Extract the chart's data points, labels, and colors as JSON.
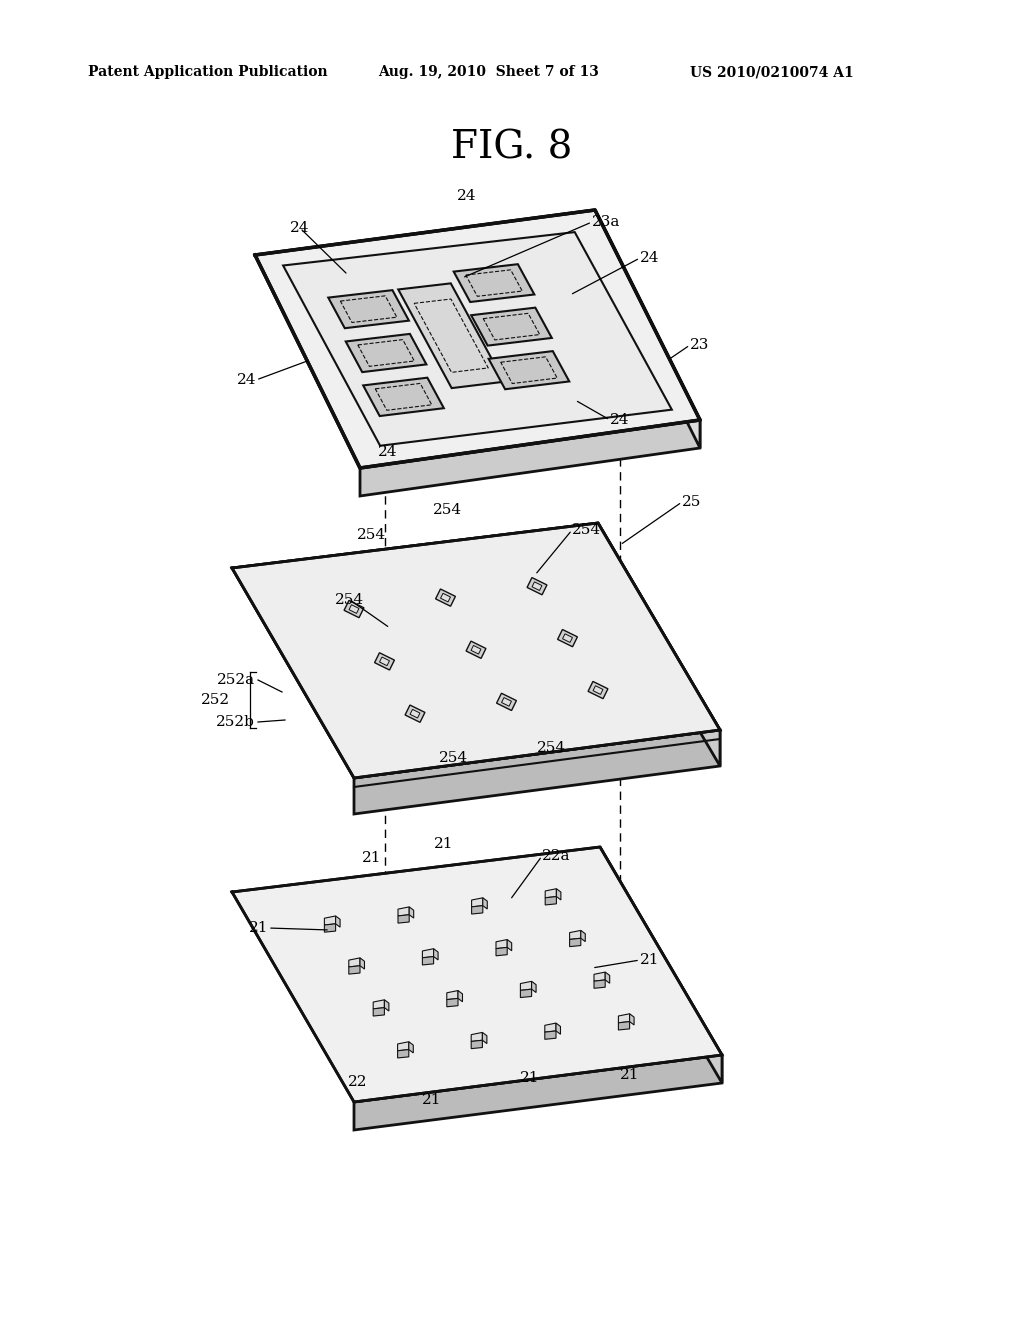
{
  "bg_color": "#ffffff",
  "header_left": "Patent Application Publication",
  "header_mid": "Aug. 19, 2010  Sheet 7 of 13",
  "header_right": "US 2010/0210074 A1",
  "fig_title": "FIG. 8",
  "header_fontsize": 10,
  "title_fontsize": 28,
  "label_fontsize": 11,
  "ec": "#111111",
  "fc_top": "#f2f2f2",
  "fc_side_front": "#d8d8d8",
  "fc_side_right": "#e5e5e5"
}
